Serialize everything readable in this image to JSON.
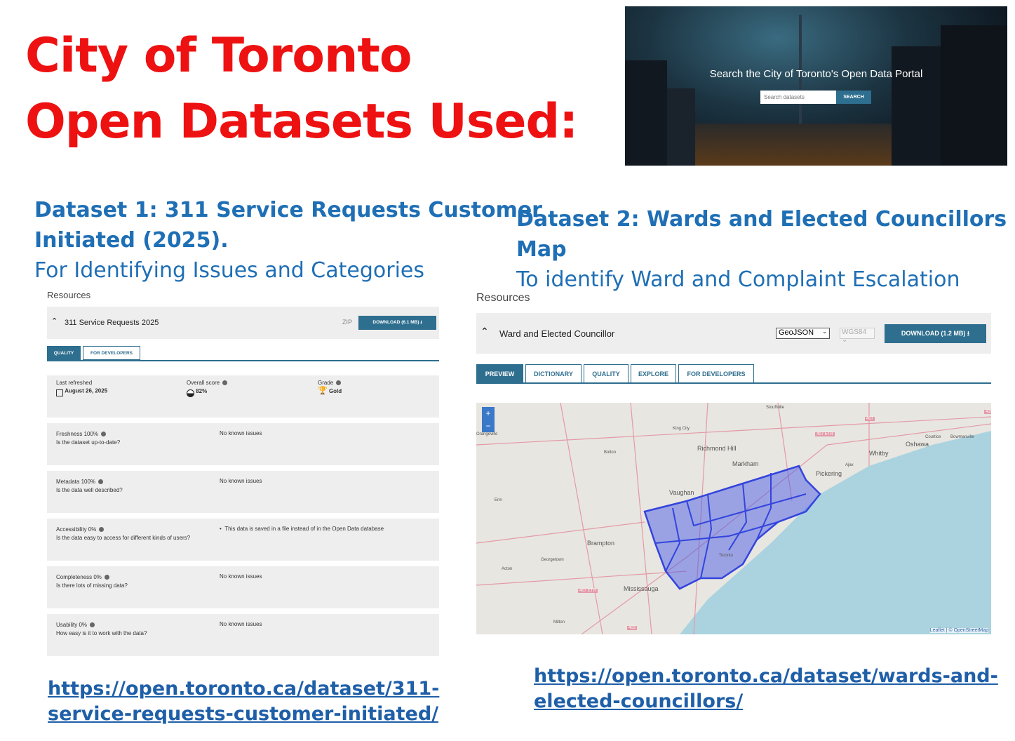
{
  "slide": {
    "title_line1": "City of Toronto",
    "title_line2": "Open Datasets Used:"
  },
  "hero": {
    "heading": "Search the City of Toronto's Open Data Portal",
    "search_placeholder": "Search datasets",
    "search_button": "SEARCH"
  },
  "dataset1": {
    "title_line1": "Dataset 1: 311 Service Requests Customer",
    "title_line2": "Initiated (2025).",
    "subtitle": "For Identifying Issues and Categories",
    "resources_label": "Resources",
    "resource_name": "311 Service Requests 2025",
    "format": "ZIP",
    "download_label": "DOWNLOAD (6.1 MB)",
    "tabs": [
      {
        "label": "QUALITY",
        "active": true
      },
      {
        "label": "FOR DEVELOPERS",
        "active": false
      }
    ],
    "summary": {
      "last_refreshed_label": "Last refreshed",
      "last_refreshed": "August 26, 2025",
      "score_label": "Overall score",
      "score": "82%",
      "grade_label": "Grade",
      "grade": "Gold"
    },
    "metrics": [
      {
        "name": "Freshness 100%",
        "question": "Is the dataset up-to-date?",
        "issue": "No known issues"
      },
      {
        "name": "Metadata 100%",
        "question": "Is the data well described?",
        "issue": "No known issues"
      },
      {
        "name": "Accessibility 0%",
        "question": "Is the data easy to access for different kinds of users?",
        "issue": "This data is saved in a file instead of in the Open Data database"
      },
      {
        "name": "Completeness 0%",
        "question": "Is there lots of missing data?",
        "issue": "No known issues"
      },
      {
        "name": "Usability 0%",
        "question": "How easy is it to work with the data?",
        "issue": "No known issues"
      }
    ],
    "link_line1": "https://open.toronto.ca/dataset/311-",
    "link_line2": "service-requests-customer-initiated/"
  },
  "dataset2": {
    "title": "Dataset 2: Wards and Elected Councillors Map",
    "subtitle": "To identify Ward and Complaint Escalation",
    "resources_label": "Resources",
    "resource_name": "Ward and Elected Councillor",
    "format": "GeoJSON",
    "projection": "WGS84",
    "download_label": "DOWNLOAD (1.2 MB)",
    "tabs": [
      {
        "label": "PREVIEW",
        "active": true
      },
      {
        "label": "DICTIONARY",
        "active": false
      },
      {
        "label": "QUALITY",
        "active": false
      },
      {
        "label": "EXPLORE",
        "active": false
      },
      {
        "label": "FOR DEVELOPERS",
        "active": false
      }
    ],
    "map": {
      "zoom_in": "+",
      "zoom_out": "−",
      "attribution": "Leaflet | © OpenStreetMap",
      "places": [
        "Orangeville",
        "King City",
        "Stouffville",
        "Richmond Hill",
        "Markham",
        "Bolton",
        "Vaughan",
        "Oshawa",
        "Whitby",
        "Courtice",
        "Bowmanville",
        "Pickering",
        "Ajax",
        "Erin",
        "Brampton",
        "Georgetown",
        "Acton",
        "Mississauga",
        "Milton",
        "Toronto",
        "407 ETR",
        "407 ETR",
        "403",
        "407",
        "418"
      ],
      "colors": {
        "land": "#e8e6e0",
        "water": "#aad3df",
        "wards": "#3344dd"
      }
    },
    "link_line1": "https://open.toronto.ca/dataset/wards-and-",
    "link_line2": "elected-councillors/"
  }
}
